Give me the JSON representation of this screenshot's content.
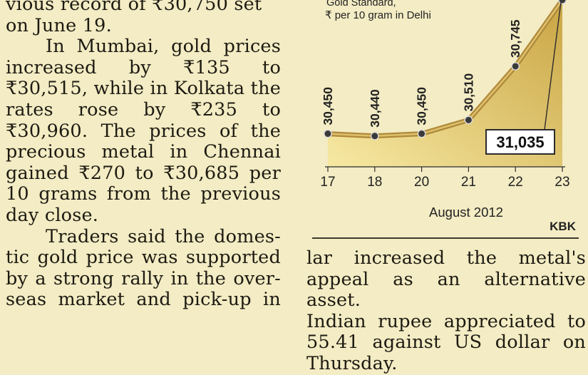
{
  "left_column": {
    "lines": [
      "vious record of ₹30,750 set",
      "on June 19.",
      "In Mumbai, gold prices",
      "increased by ₹135 to",
      "₹30,515, while in Kolkata the",
      "rates rose by ₹235 to",
      "₹30,960. The prices of the",
      "precious metal in Chennai",
      "gained ₹270 to ₹30,685 per",
      "10 grams from the previous",
      "day close.",
      "Traders said the domes-",
      "tic gold price was supported",
      "by a strong rally in the over-",
      "seas market and pick-up in"
    ]
  },
  "right_column": {
    "lines": [
      "lar increased the metal's",
      "appeal as an alternative asset.",
      "Indian rupee appreciated to",
      "55.41 against US dollar on",
      "Thursday."
    ]
  },
  "chart_data": {
    "type": "area",
    "subtitle_lines": [
      "Gold Standard,",
      "₹ per 10 gram in Delhi"
    ],
    "categories": [
      "17",
      "18",
      "20",
      "21",
      "22",
      "23"
    ],
    "series": [
      {
        "values": [
          30450,
          30440,
          30450,
          30510,
          30745,
          31035
        ]
      }
    ],
    "data_labels": [
      "30,450",
      "30,440",
      "30,450",
      "30,510",
      "30,745"
    ],
    "highlight_label": "31,035",
    "xlabel": "August 2012",
    "credit": "KBK",
    "ylim": [
      30380,
      31035
    ],
    "colors": {
      "fill_light": "#f7e9a3",
      "fill_dark": "#c9a544",
      "line": "#b0893a",
      "marker": "#3a3a3a"
    }
  }
}
